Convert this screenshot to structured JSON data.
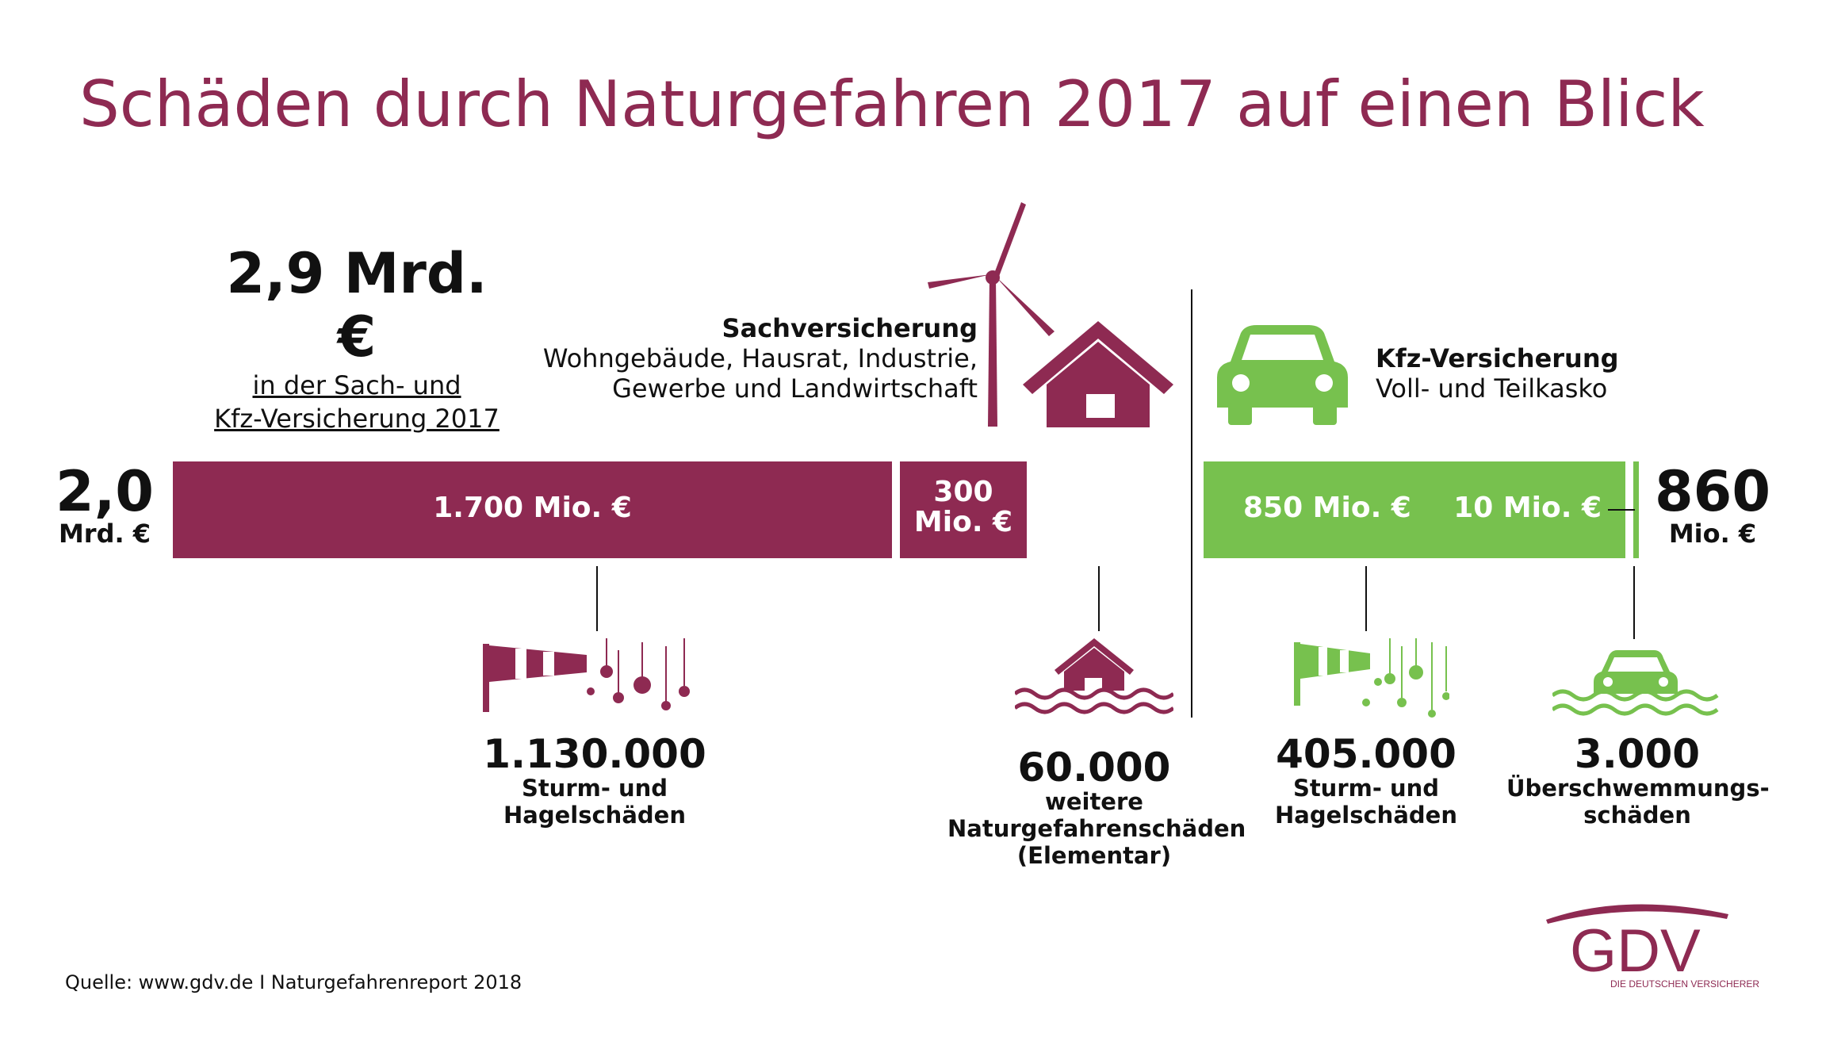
{
  "title": "Schäden durch Naturgefahren 2017 auf einen Blick",
  "total": {
    "value": "2,9 Mrd. €",
    "line1": "in der Sach- und",
    "line2": "Kfz-Versicherung 2017"
  },
  "sach": {
    "title": "Sachversicherung",
    "line1": "Wohngebäude, Hausrat, Industrie,",
    "line2": "Gewerbe und Landwirtschaft",
    "total_value": "2,0",
    "total_unit": "Mrd. €"
  },
  "kfz": {
    "title": "Kfz-Versicherung",
    "line1": "Voll- und Teilkasko",
    "total_value": "860",
    "total_unit": "Mio. €"
  },
  "colors": {
    "sach": "#8e2a52",
    "kfz": "#77c14e"
  },
  "chart_data": {
    "type": "bar",
    "unit": "Mio. €",
    "series": [
      {
        "name": "Sachversicherung",
        "total": "2,0 Mrd. €",
        "segments": [
          {
            "value": 1700,
            "label": "1.700 Mio. €"
          },
          {
            "value": 300,
            "label_line1": "300",
            "label_line2": "Mio. €"
          }
        ]
      },
      {
        "name": "Kfz-Versicherung",
        "total": "860 Mio. €",
        "segments": [
          {
            "value": 850,
            "label": "850 Mio. €"
          },
          {
            "value": 10,
            "label": "10 Mio. €"
          }
        ]
      }
    ]
  },
  "stats": [
    {
      "number": "1.130.000",
      "line1": "Sturm- und",
      "line2": "Hagelschäden",
      "icon": "windsock-hail-icon"
    },
    {
      "number": "60.000",
      "line1": "weitere",
      "line2": "Naturgefahrenschäden",
      "line3": "(Elementar)",
      "icon": "flood-house-icon"
    },
    {
      "number": "405.000",
      "line1": "Sturm- und",
      "line2": "Hagelschäden",
      "icon": "windsock-hail-icon"
    },
    {
      "number": "3.000",
      "line1": "Überschwemmungs-",
      "line2": "schäden",
      "icon": "flood-car-icon"
    }
  ],
  "source": "Quelle: www.gdv.de I Naturgefahrenreport 2018",
  "logo": {
    "text": "GDV",
    "tagline": "DIE DEUTSCHEN VERSICHERER"
  }
}
